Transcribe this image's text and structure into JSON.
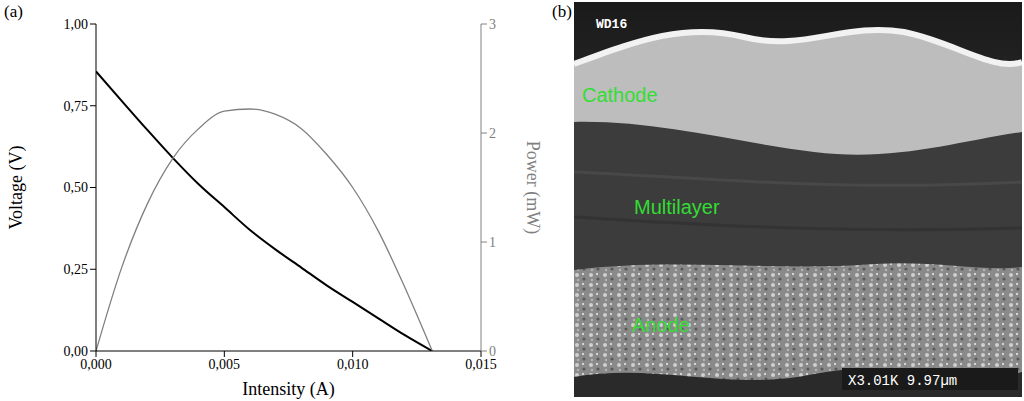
{
  "chart_data": {
    "type": "line",
    "panel_label": "(a)",
    "xlabel": "Intensity (A)",
    "ylabel": "Voltage (V)",
    "y2label": "Power (mW)",
    "x": [
      0,
      0.001,
      0.002,
      0.003,
      0.004,
      0.005,
      0.006,
      0.007,
      0.008,
      0.009,
      0.01,
      0.011,
      0.012,
      0.0131
    ],
    "series": [
      {
        "name": "Voltage (V)",
        "color": "#000000",
        "values": [
          0.855,
          0.765,
          0.676,
          0.59,
          0.51,
          0.44,
          0.37,
          0.31,
          0.255,
          0.2,
          0.15,
          0.1,
          0.05,
          0
        ]
      },
      {
        "name": "Power (mW)",
        "color": "#808080",
        "axis": "y2",
        "values": [
          0,
          0.765,
          1.35,
          1.77,
          2.04,
          2.2,
          2.22,
          2.17,
          2.04,
          1.8,
          1.5,
          1.1,
          0.6,
          0
        ]
      }
    ],
    "xlim": [
      0,
      0.015
    ],
    "xticks": [
      {
        "value": 0,
        "label": "0,000"
      },
      {
        "value": 0.005,
        "label": "0,005"
      },
      {
        "value": 0.01,
        "label": "0,010"
      },
      {
        "value": 0.015,
        "label": "0,015"
      }
    ],
    "ylim": [
      0,
      1
    ],
    "yticks": [
      {
        "value": 0,
        "label": "0,00"
      },
      {
        "value": 0.25,
        "label": "0,25"
      },
      {
        "value": 0.5,
        "label": "0,50"
      },
      {
        "value": 0.75,
        "label": "0,75"
      },
      {
        "value": 1,
        "label": "1,00"
      }
    ],
    "y2lim": [
      0,
      3
    ],
    "y2ticks": [
      0,
      1,
      2,
      3
    ],
    "grid": false
  },
  "micrograph": {
    "panel_label": "(b)",
    "header": "WD16",
    "layers": [
      "Cathode",
      "Multilayer",
      "Anode"
    ],
    "footer": "X3.01K 9.97µm"
  }
}
